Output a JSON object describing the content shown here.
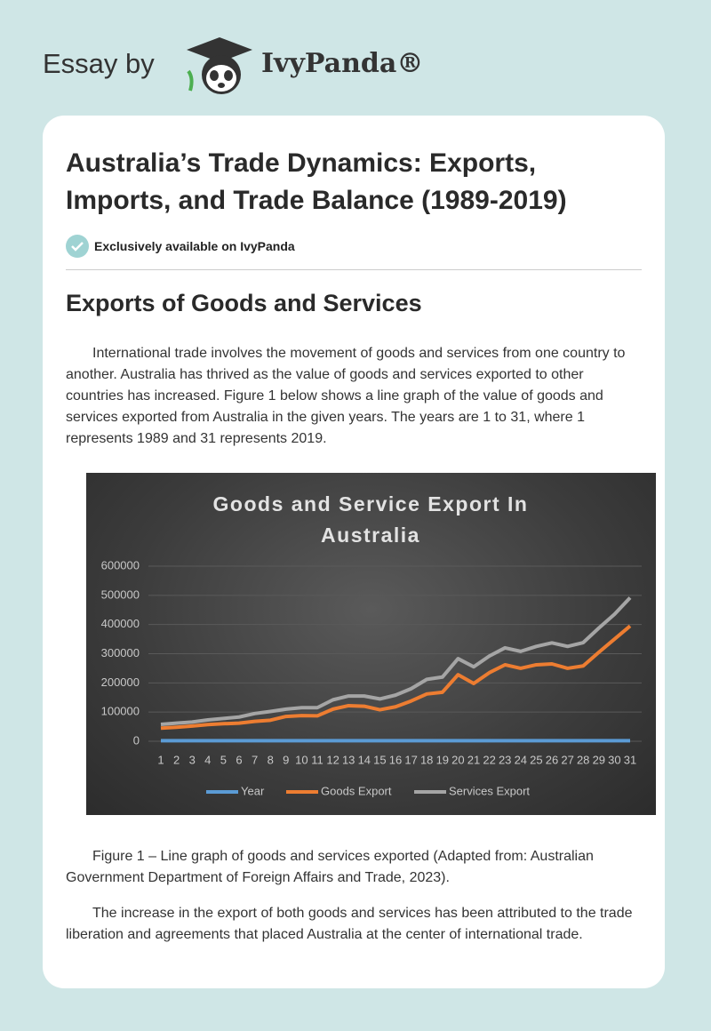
{
  "header": {
    "prefix": "Essay by",
    "brand": "IvyPanda®"
  },
  "article": {
    "title": "Australia’s Trade Dynamics: Exports, Imports, and Trade Balance (1989-2019)",
    "badge": "Exclusively available on IvyPanda",
    "heading": "Exports of Goods and Services",
    "paragraph1": "International trade involves the movement of goods and services from one country to another. Australia has thrived as the value of goods and services exported to other countries has increased. Figure 1 below shows a line graph of the value of goods and services exported from Australia in the given years. The years are 1 to 31, where 1 represents 1989 and 31 represents 2019.",
    "caption": "Figure 1 – Line graph of goods and services exported (Adapted from: Australian Government Department of Foreign Affairs and Trade, 2023).",
    "paragraph2": "The increase in the export of both goods and services has been attributed to the trade liberation and agreements that placed Australia at the center of international trade."
  },
  "chart_data": {
    "type": "line",
    "title": "Goods and Service Export In Australia",
    "categories": [
      1,
      2,
      3,
      4,
      5,
      6,
      7,
      8,
      9,
      10,
      11,
      12,
      13,
      14,
      15,
      16,
      17,
      18,
      19,
      20,
      21,
      22,
      23,
      24,
      25,
      26,
      27,
      28,
      29,
      30,
      31
    ],
    "series": [
      {
        "name": "Year",
        "color": "#5b9bd5",
        "values": [
          1989,
          1990,
          1991,
          1992,
          1993,
          1994,
          1995,
          1996,
          1997,
          1998,
          1999,
          2000,
          2001,
          2002,
          2003,
          2004,
          2005,
          2006,
          2007,
          2008,
          2009,
          2010,
          2011,
          2012,
          2013,
          2014,
          2015,
          2016,
          2017,
          2018,
          2019
        ]
      },
      {
        "name": "Goods Export",
        "color": "#ed7d31",
        "values": [
          45000,
          48000,
          52000,
          57000,
          60000,
          62000,
          68000,
          72000,
          85000,
          88000,
          87000,
          110000,
          122000,
          120000,
          108000,
          118000,
          138000,
          162000,
          168000,
          228000,
          198000,
          235000,
          262000,
          250000,
          262000,
          265000,
          250000,
          258000,
          305000,
          350000,
          395000
        ]
      },
      {
        "name": "Services Export",
        "color": "#a5a5a5",
        "values": [
          58000,
          62000,
          66000,
          73000,
          78000,
          83000,
          95000,
          102000,
          110000,
          115000,
          115000,
          142000,
          155000,
          155000,
          145000,
          158000,
          180000,
          212000,
          220000,
          283000,
          255000,
          292000,
          320000,
          308000,
          325000,
          337000,
          325000,
          338000,
          388000,
          435000,
          492000
        ]
      }
    ],
    "ylim": [
      0,
      600000
    ],
    "yticks": [
      0,
      100000,
      200000,
      300000,
      400000,
      500000,
      600000
    ],
    "grid": true,
    "legend": "bottom"
  }
}
